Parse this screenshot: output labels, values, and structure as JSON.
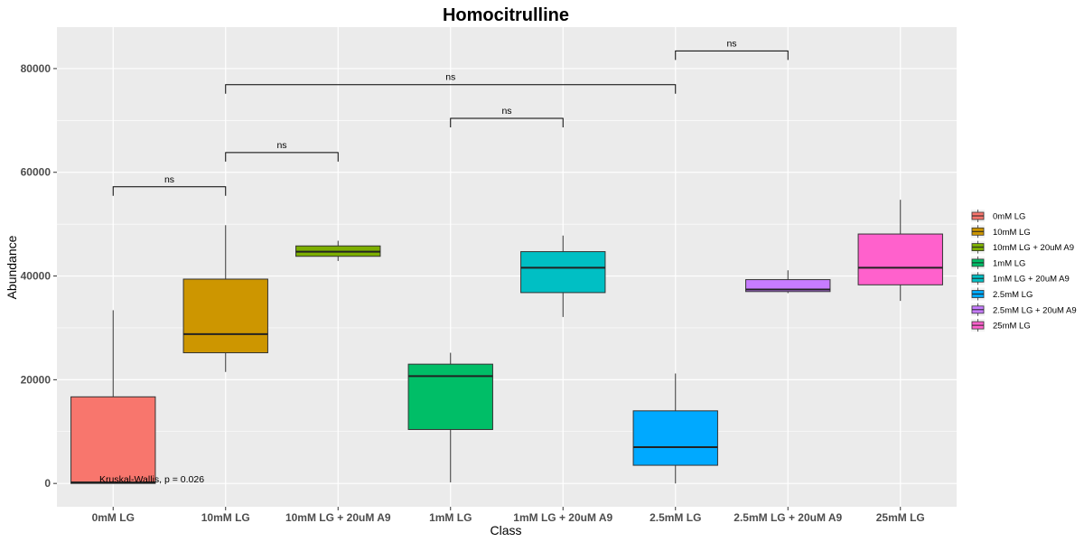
{
  "chart_data": {
    "type": "box",
    "title": "Homocitrulline",
    "xlabel": "Class",
    "ylabel": "Abundance",
    "ylim": [
      -4500,
      88000
    ],
    "y_ticks": [
      0,
      20000,
      40000,
      60000,
      80000
    ],
    "y_tick_labels": [
      "0",
      "20000",
      "40000",
      "60000",
      "80000"
    ],
    "grid": true,
    "legend_position": "right",
    "categories": [
      "0mM LG",
      "10mM LG",
      "10mM LG + 20uM A9",
      "1mM LG",
      "1mM LG + 20uM A9",
      "2.5mM LG",
      "2.5mM LG + 20uM A9",
      "25mM LG"
    ],
    "boxes": [
      {
        "name": "0mM LG",
        "color": "#F8766D",
        "whisker_low": 0,
        "q1": 0,
        "median": 200,
        "q3": 16700,
        "whisker_high": 33400
      },
      {
        "name": "10mM LG",
        "color": "#CD9600",
        "whisker_low": 21500,
        "q1": 25200,
        "median": 28800,
        "q3": 39400,
        "whisker_high": 49800
      },
      {
        "name": "10mM LG + 20uM A9",
        "color": "#7CAE00",
        "whisker_low": 42900,
        "q1": 43800,
        "median": 44700,
        "q3": 45800,
        "whisker_high": 46800
      },
      {
        "name": "1mM LG",
        "color": "#00BE67",
        "whisker_low": 200,
        "q1": 10400,
        "median": 20700,
        "q3": 23000,
        "whisker_high": 25200
      },
      {
        "name": "1mM LG + 20uM A9",
        "color": "#00BFC4",
        "whisker_low": 32100,
        "q1": 36800,
        "median": 41600,
        "q3": 44700,
        "whisker_high": 47800
      },
      {
        "name": "2.5mM LG",
        "color": "#00A9FF",
        "whisker_low": 0,
        "q1": 3500,
        "median": 7000,
        "q3": 14000,
        "whisker_high": 21200
      },
      {
        "name": "2.5mM LG + 20uM A9",
        "color": "#C77CFF",
        "whisker_low": 36700,
        "q1": 37000,
        "median": 37400,
        "q3": 39300,
        "whisker_high": 41100
      },
      {
        "name": "25mM LG",
        "color": "#FF61CC",
        "whisker_low": 35200,
        "q1": 38300,
        "median": 41600,
        "q3": 48100,
        "whisker_high": 54700
      }
    ],
    "comparisons": [
      {
        "from": 0,
        "to": 1,
        "y": 57200,
        "label": "ns"
      },
      {
        "from": 1,
        "to": 2,
        "y": 63800,
        "label": "ns"
      },
      {
        "from": 3,
        "to": 4,
        "y": 70400,
        "label": "ns"
      },
      {
        "from": 1,
        "to": 5,
        "y": 76900,
        "label": "ns"
      },
      {
        "from": 5,
        "to": 6,
        "y": 83400,
        "label": "ns"
      }
    ],
    "annotation": {
      "text": "Kruskal-Wallis, p = 0.026",
      "y": 200
    }
  }
}
